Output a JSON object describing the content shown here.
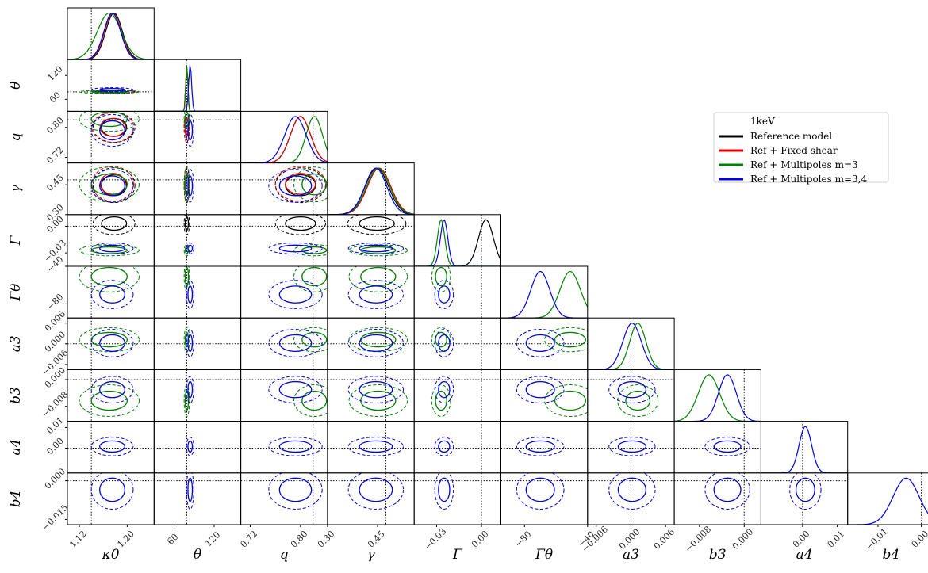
{
  "chart_data": {
    "type": "corner",
    "parameters": [
      {
        "key": "kappa0",
        "label": "κ0",
        "ticks": [
          {
            "v": 1.12,
            "t": "1.12"
          },
          {
            "v": 1.2,
            "t": "1.20"
          }
        ],
        "range": [
          1.1,
          1.245
        ],
        "truth": 1.14
      },
      {
        "key": "theta",
        "label": "θ",
        "ticks": [
          {
            "v": 60,
            "t": "60"
          },
          {
            "v": 120,
            "t": "120"
          }
        ],
        "range": [
          30,
          160
        ],
        "truth": 79
      },
      {
        "key": "q",
        "label": "q",
        "ticks": [
          {
            "v": 0.72,
            "t": "0.72"
          },
          {
            "v": 0.8,
            "t": "0.80"
          }
        ],
        "range": [
          0.705,
          0.843
        ],
        "truth": 0.82
      },
      {
        "key": "gamma",
        "label": "γ",
        "ticks": [
          {
            "v": 0.3,
            "t": "0.30"
          },
          {
            "v": 0.45,
            "t": "0.45"
          }
        ],
        "range": [
          0.3,
          0.56
        ],
        "truth": 0.475
      },
      {
        "key": "Gamma",
        "label": "Γ",
        "ticks": [
          {
            "v": -0.03,
            "t": "−0.03"
          },
          {
            "v": 0.0,
            "t": "0.00"
          }
        ],
        "range": [
          -0.045,
          0.013
        ],
        "truth": 0.0
      },
      {
        "key": "Gamma_theta",
        "label": "Γθ",
        "ticks": [
          {
            "v": -80,
            "t": "−80"
          },
          {
            "v": -40,
            "t": "−40"
          }
        ],
        "range": [
          -95,
          -40
        ],
        "truth": null
      },
      {
        "key": "a3",
        "label": "a3",
        "ticks": [
          {
            "v": -0.006,
            "t": "−0.006"
          },
          {
            "v": 0.0,
            "t": "0.000"
          },
          {
            "v": 0.006,
            "t": "0.006"
          }
        ],
        "range": [
          -0.0075,
          0.0075
        ],
        "truth": 0.0
      },
      {
        "key": "b3",
        "label": "b3",
        "ticks": [
          {
            "v": -0.008,
            "t": "−0.008"
          },
          {
            "v": 0.0,
            "t": "0.000"
          }
        ],
        "range": [
          -0.0125,
          0.003
        ],
        "truth": 0.0
      },
      {
        "key": "a4",
        "label": "a4",
        "ticks": [
          {
            "v": 0.0,
            "t": "0.00"
          },
          {
            "v": 0.01,
            "t": "0.01"
          }
        ],
        "range": [
          -0.012,
          0.013
        ],
        "truth": 0.0
      },
      {
        "key": "b4",
        "label": "b4",
        "ticks": [
          {
            "v": -0.015,
            "t": "−0.015"
          },
          {
            "v": 0.0,
            "t": "0.000"
          }
        ],
        "range": [
          -0.017,
          0.003
        ],
        "truth": 0.0
      }
    ],
    "x_ticks_b4": [
      {
        "v": -0.01,
        "t": "−0.01"
      },
      {
        "v": 0.0,
        "t": "0.00"
      }
    ],
    "series": [
      {
        "name": "Reference model",
        "color": "#000000",
        "mean": {
          "kappa0": 1.178,
          "theta": 79,
          "q": 0.8,
          "gamma": 0.448,
          "Gamma": 0.003
        },
        "sigma": {
          "kappa0": 0.014,
          "theta": 1.6,
          "q": 0.016,
          "gamma": 0.035,
          "Gamma": 0.005
        }
      },
      {
        "name": "Ref + Fixed shear",
        "color": "#e00000",
        "mean": {
          "kappa0": 1.176,
          "theta": 79,
          "q": 0.8,
          "gamma": 0.455
        },
        "sigma": {
          "kappa0": 0.014,
          "theta": 1.5,
          "q": 0.016,
          "gamma": 0.035
        }
      },
      {
        "name": "Ref + Multipoles m=3",
        "color": "#008000",
        "mean": {
          "kappa0": 1.17,
          "theta": 79,
          "q": 0.822,
          "gamma": 0.452,
          "Gamma": -0.027,
          "Gamma_theta": -51,
          "a3": 0.0012,
          "b3": -0.0063
        },
        "sigma": {
          "kappa0": 0.02,
          "theta": 1.6,
          "q": 0.013,
          "gamma": 0.035,
          "Gamma": 0.0025,
          "Gamma_theta": 6.5,
          "a3": 0.0014,
          "b3": 0.0019
        }
      },
      {
        "name": "Ref + Multipoles m=3,4",
        "color": "#0000e0",
        "mean": {
          "kappa0": 1.175,
          "theta": 84,
          "q": 0.792,
          "gamma": 0.445,
          "Gamma": -0.025,
          "Gamma_theta": -70,
          "a3": 0.0002,
          "b3": -0.003,
          "a4": 0.0008,
          "b4": -0.0035
        },
        "sigma": {
          "kappa0": 0.014,
          "theta": 2.2,
          "q": 0.017,
          "gamma": 0.033,
          "Gamma": 0.0025,
          "Gamma_theta": 6.0,
          "a3": 0.0016,
          "b3": 0.0016,
          "a4": 0.0018,
          "b4": 0.003
        }
      }
    ],
    "legend": {
      "title": "1keV",
      "placement": "upper right"
    }
  }
}
